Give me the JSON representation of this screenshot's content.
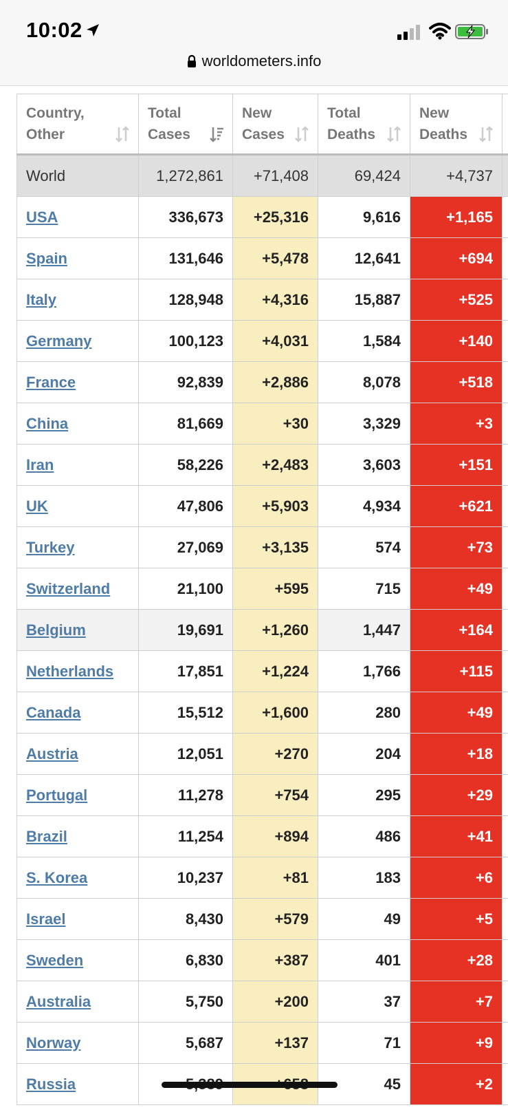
{
  "status_bar": {
    "time": "10:02"
  },
  "browser": {
    "url": "worldometers.info"
  },
  "table": {
    "headers": [
      {
        "line1": "Country,",
        "line2": "Other"
      },
      {
        "line1": "Total",
        "line2": "Cases"
      },
      {
        "line1": "New",
        "line2": "Cases"
      },
      {
        "line1": "Total",
        "line2": "Deaths"
      },
      {
        "line1": "New",
        "line2": "Deaths"
      }
    ],
    "world": {
      "name": "World",
      "total_cases": "1,272,861",
      "new_cases": "+71,408",
      "total_deaths": "69,424",
      "new_deaths": "+4,737"
    },
    "rows": [
      {
        "name": "USA",
        "total_cases": "336,673",
        "new_cases": "+25,316",
        "total_deaths": "9,616",
        "new_deaths": "+1,165"
      },
      {
        "name": "Spain",
        "total_cases": "131,646",
        "new_cases": "+5,478",
        "total_deaths": "12,641",
        "new_deaths": "+694"
      },
      {
        "name": "Italy",
        "total_cases": "128,948",
        "new_cases": "+4,316",
        "total_deaths": "15,887",
        "new_deaths": "+525"
      },
      {
        "name": "Germany",
        "total_cases": "100,123",
        "new_cases": "+4,031",
        "total_deaths": "1,584",
        "new_deaths": "+140"
      },
      {
        "name": "France",
        "total_cases": "92,839",
        "new_cases": "+2,886",
        "total_deaths": "8,078",
        "new_deaths": "+518"
      },
      {
        "name": "China",
        "total_cases": "81,669",
        "new_cases": "+30",
        "total_deaths": "3,329",
        "new_deaths": "+3"
      },
      {
        "name": "Iran",
        "total_cases": "58,226",
        "new_cases": "+2,483",
        "total_deaths": "3,603",
        "new_deaths": "+151"
      },
      {
        "name": "UK",
        "total_cases": "47,806",
        "new_cases": "+5,903",
        "total_deaths": "4,934",
        "new_deaths": "+621"
      },
      {
        "name": "Turkey",
        "total_cases": "27,069",
        "new_cases": "+3,135",
        "total_deaths": "574",
        "new_deaths": "+73"
      },
      {
        "name": "Switzerland",
        "total_cases": "21,100",
        "new_cases": "+595",
        "total_deaths": "715",
        "new_deaths": "+49"
      },
      {
        "name": "Belgium",
        "total_cases": "19,691",
        "new_cases": "+1,260",
        "total_deaths": "1,447",
        "new_deaths": "+164",
        "highlight": true
      },
      {
        "name": "Netherlands",
        "total_cases": "17,851",
        "new_cases": "+1,224",
        "total_deaths": "1,766",
        "new_deaths": "+115"
      },
      {
        "name": "Canada",
        "total_cases": "15,512",
        "new_cases": "+1,600",
        "total_deaths": "280",
        "new_deaths": "+49"
      },
      {
        "name": "Austria",
        "total_cases": "12,051",
        "new_cases": "+270",
        "total_deaths": "204",
        "new_deaths": "+18"
      },
      {
        "name": "Portugal",
        "total_cases": "11,278",
        "new_cases": "+754",
        "total_deaths": "295",
        "new_deaths": "+29"
      },
      {
        "name": "Brazil",
        "total_cases": "11,254",
        "new_cases": "+894",
        "total_deaths": "486",
        "new_deaths": "+41"
      },
      {
        "name": "S. Korea",
        "total_cases": "10,237",
        "new_cases": "+81",
        "total_deaths": "183",
        "new_deaths": "+6"
      },
      {
        "name": "Israel",
        "total_cases": "8,430",
        "new_cases": "+579",
        "total_deaths": "49",
        "new_deaths": "+5"
      },
      {
        "name": "Sweden",
        "total_cases": "6,830",
        "new_cases": "+387",
        "total_deaths": "401",
        "new_deaths": "+28"
      },
      {
        "name": "Australia",
        "total_cases": "5,750",
        "new_cases": "+200",
        "total_deaths": "37",
        "new_deaths": "+7"
      },
      {
        "name": "Norway",
        "total_cases": "5,687",
        "new_cases": "+137",
        "total_deaths": "71",
        "new_deaths": "+9"
      },
      {
        "name": "Russia",
        "total_cases": "5,389",
        "new_cases": "+658",
        "total_deaths": "45",
        "new_deaths": "+2"
      }
    ]
  },
  "colors": {
    "link": "#4e7ca7",
    "new_cases_bg": "#f9eebf",
    "new_deaths_bg": "#e63224",
    "world_row_bg": "#dfdfdf"
  },
  "icons": [
    "location-arrow-icon",
    "signal-icon",
    "wifi-icon",
    "battery-charging-icon",
    "lock-icon",
    "sort-icon"
  ]
}
